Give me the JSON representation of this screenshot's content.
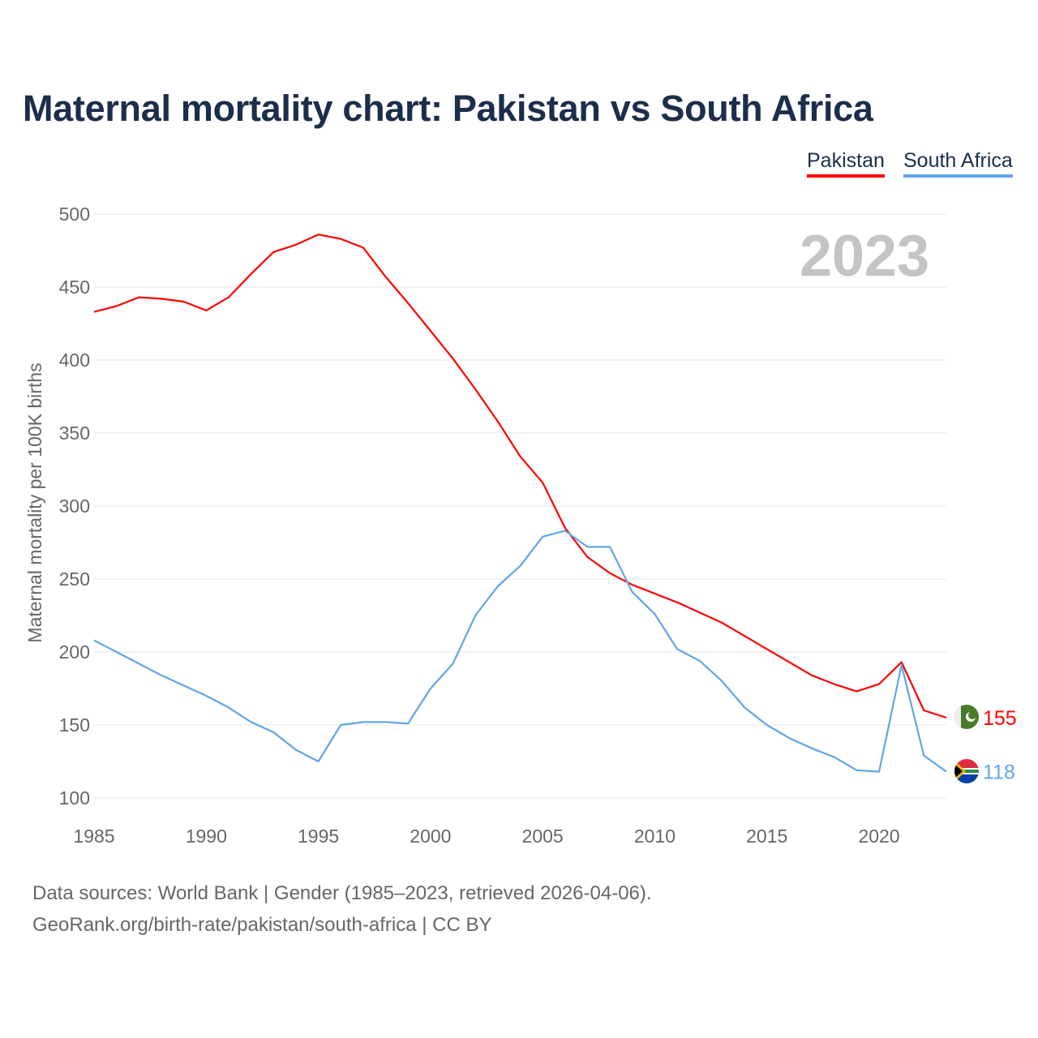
{
  "chart_data": {
    "type": "line",
    "title": "Maternal mortality chart: Pakistan vs South Africa",
    "ylabel": "Maternal mortality per 100K births",
    "xlabel": "",
    "ylim": [
      100,
      500
    ],
    "xlim": [
      1985,
      2023
    ],
    "yticks": [
      "100",
      "150",
      "200",
      "250",
      "300",
      "350",
      "400",
      "450",
      "500"
    ],
    "xticks": [
      "1985",
      "1990",
      "1995",
      "2000",
      "2005",
      "2010",
      "2015",
      "2020"
    ],
    "grid": true,
    "legend_position": "top-right",
    "year_label": "2023",
    "x": [
      1985,
      1986,
      1987,
      1988,
      1989,
      1990,
      1991,
      1992,
      1993,
      1994,
      1995,
      1996,
      1997,
      1998,
      1999,
      2000,
      2001,
      2002,
      2003,
      2004,
      2005,
      2006,
      2007,
      2008,
      2009,
      2010,
      2011,
      2012,
      2013,
      2014,
      2015,
      2016,
      2017,
      2018,
      2019,
      2020,
      2021,
      2022,
      2023
    ],
    "series": [
      {
        "name": "Pakistan",
        "color": "#ff0000",
        "end_label": "155",
        "values": [
          433,
          437,
          443,
          442,
          440,
          434,
          443,
          459,
          474,
          479,
          486,
          483,
          477,
          457,
          439,
          420,
          401,
          380,
          358,
          334,
          316,
          285,
          265,
          254,
          246,
          240,
          234,
          227,
          220,
          211,
          202,
          193,
          184,
          178,
          173,
          178,
          193,
          160,
          155
        ]
      },
      {
        "name": "South Africa",
        "color": "#60a5e8",
        "end_label": "118",
        "values": [
          208,
          200,
          192,
          184,
          177,
          170,
          162,
          152,
          145,
          133,
          125,
          150,
          152,
          152,
          151,
          175,
          192,
          225,
          245,
          259,
          279,
          283,
          272,
          272,
          241,
          226,
          202,
          194,
          180,
          162,
          150,
          141,
          134,
          128,
          119,
          118,
          191,
          129,
          118
        ]
      }
    ]
  },
  "footer": {
    "line1": "Data sources: World Bank | Gender (1985–2023, retrieved 2026-04-06).",
    "line2": "GeoRank.org/birth-rate/pakistan/south-africa | CC BY"
  }
}
